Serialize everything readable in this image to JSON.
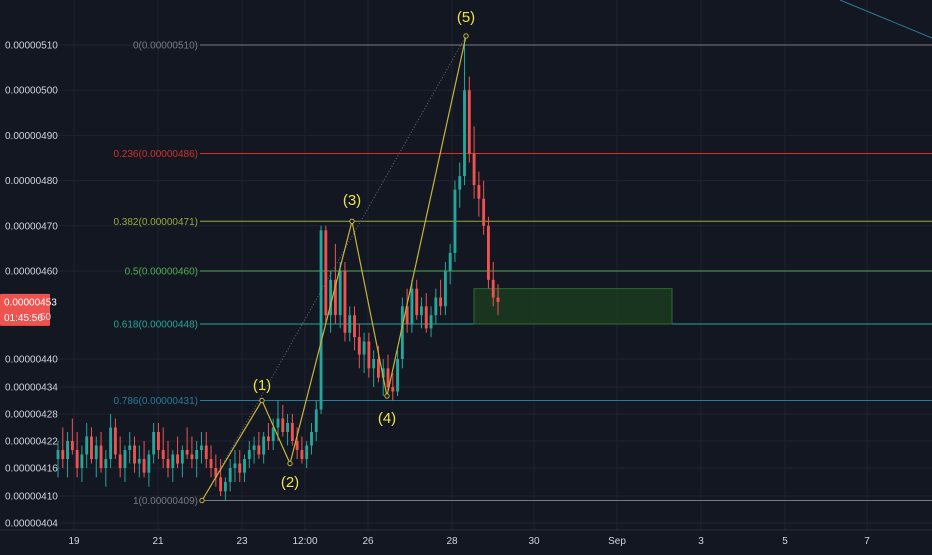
{
  "colors": {
    "background": "#131722",
    "grid": "#1f2330",
    "up": "#26a69a",
    "down": "#ef5350",
    "wave": "#c8b33a",
    "wave_label": "#f2e34a",
    "fib_top": "#787b86",
    "fib_0236": "#d32f2f",
    "fib_0382": "#9aa83a",
    "fib_05": "#4caf50",
    "fib_0618": "#26a69a",
    "fib_0786": "#2b7a9a",
    "fib_1": "#787b86",
    "rect_fill": "#1b3a1e",
    "rect_stroke": "#2e6b32",
    "price_tag_bg": "#ef5350",
    "trendline": "#2b7a9a"
  },
  "chart_data": {
    "type": "candlestick",
    "y_axis": {
      "range": [
        4.02e-06,
        5.15e-06
      ],
      "ticks": [
        {
          "v": 4.04e-06,
          "label": "0.00000404"
        },
        {
          "v": 4.1e-06,
          "label": "0.00000410"
        },
        {
          "v": 4.16e-06,
          "label": "0.00000416"
        },
        {
          "v": 4.22e-06,
          "label": "0.00000422"
        },
        {
          "v": 4.28e-06,
          "label": "0.00000428"
        },
        {
          "v": 4.34e-06,
          "label": "0.00000434"
        },
        {
          "v": 4.4e-06,
          "label": "0.00000440"
        },
        {
          "v": 4.6e-06,
          "label": "0.00000460"
        },
        {
          "v": 4.7e-06,
          "label": "0.00000470"
        },
        {
          "v": 4.8e-06,
          "label": "0.00000480"
        },
        {
          "v": 4.9e-06,
          "label": "0.00000490"
        },
        {
          "v": 5e-06,
          "label": "0.00000500"
        },
        {
          "v": 5.1e-06,
          "label": "0.00000510"
        }
      ]
    },
    "x_axis": {
      "ticks": [
        "19",
        "21",
        "23",
        "12:00",
        "26",
        "28",
        "30",
        "Sep",
        "3",
        "5",
        "7"
      ]
    },
    "current_price": {
      "value": 4.53e-06,
      "label": "0.00000453",
      "countdown": "01:45:56",
      "partial_tick": "50"
    },
    "fib_levels": [
      {
        "ratio": "0",
        "price": 5.1e-06,
        "label": "0(0.00000510)",
        "color_key": "fib_top"
      },
      {
        "ratio": "0.236",
        "price": 4.86e-06,
        "label": "0.236(0.00000486)",
        "color_key": "fib_0236"
      },
      {
        "ratio": "0.382",
        "price": 4.71e-06,
        "label": "0.382(0.00000471)",
        "color_key": "fib_0382"
      },
      {
        "ratio": "0.5",
        "price": 4.6e-06,
        "label": "0.5(0.00000460)",
        "color_key": "fib_05"
      },
      {
        "ratio": "0.618",
        "price": 4.48e-06,
        "label": "0.618(0.00000448)",
        "color_key": "fib_0618"
      },
      {
        "ratio": "0.786",
        "price": 4.31e-06,
        "label": "0.786(0.00000431)",
        "color_key": "fib_0786"
      },
      {
        "ratio": "1",
        "price": 4.09e-06,
        "label": "1(0.00000409)",
        "color_key": "fib_1"
      }
    ],
    "elliott_wave": [
      {
        "label": "",
        "date": "Aug 22",
        "price": 4.09e-06
      },
      {
        "label": "(1)",
        "date": "Aug 23",
        "price": 4.31e-06
      },
      {
        "label": "(2)",
        "date": "Aug 24",
        "price": 4.17e-06
      },
      {
        "label": "(3)",
        "date": "Aug 25",
        "price": 4.71e-06
      },
      {
        "label": "(4)",
        "date": "Aug 26",
        "price": 4.32e-06
      },
      {
        "label": "(5)",
        "date": "Aug 28",
        "price": 5.12e-06
      }
    ],
    "support_zone": {
      "price_top": 4.56e-06,
      "price_bottom": 4.48e-06
    },
    "candles": [
      [
        4.18e-06,
        4.22e-06,
        4.14e-06,
        4.2e-06
      ],
      [
        4.2e-06,
        4.25e-06,
        4.16e-06,
        4.18e-06
      ],
      [
        4.18e-06,
        4.24e-06,
        4.14e-06,
        4.22e-06
      ],
      [
        4.22e-06,
        4.27e-06,
        4.19e-06,
        4.2e-06
      ],
      [
        4.2e-06,
        4.24e-06,
        4.14e-06,
        4.16e-06
      ],
      [
        4.16e-06,
        4.21e-06,
        4.13e-06,
        4.19e-06
      ],
      [
        4.19e-06,
        4.26e-06,
        4.16e-06,
        4.23e-06
      ],
      [
        4.23e-06,
        4.25e-06,
        4.17e-06,
        4.18e-06
      ],
      [
        4.18e-06,
        4.23e-06,
        4.14e-06,
        4.21e-06
      ],
      [
        4.21e-06,
        4.24e-06,
        4.15e-06,
        4.16e-06
      ],
      [
        4.16e-06,
        4.2e-06,
        4.12e-06,
        4.18e-06
      ],
      [
        4.18e-06,
        4.28e-06,
        4.16e-06,
        4.25e-06
      ],
      [
        4.25e-06,
        4.27e-06,
        4.18e-06,
        4.19e-06
      ],
      [
        4.19e-06,
        4.23e-06,
        4.14e-06,
        4.16e-06
      ],
      [
        4.16e-06,
        4.21e-06,
        4.13e-06,
        4.2e-06
      ],
      [
        4.2e-06,
        4.24e-06,
        4.17e-06,
        4.21e-06
      ],
      [
        4.21e-06,
        4.23e-06,
        4.15e-06,
        4.17e-06
      ],
      [
        4.17e-06,
        4.21e-06,
        4.14e-06,
        4.18e-06
      ],
      [
        4.18e-06,
        4.22e-06,
        4.14e-06,
        4.15e-06
      ],
      [
        4.15e-06,
        4.2e-06,
        4.12e-06,
        4.19e-06
      ],
      [
        4.19e-06,
        4.26e-06,
        4.17e-06,
        4.24e-06
      ],
      [
        4.24e-06,
        4.26e-06,
        4.18e-06,
        4.2e-06
      ],
      [
        4.2e-06,
        4.25e-06,
        4.16e-06,
        4.18e-06
      ],
      [
        4.18e-06,
        4.22e-06,
        4.14e-06,
        4.16e-06
      ],
      [
        4.16e-06,
        4.2e-06,
        4.13e-06,
        4.19e-06
      ],
      [
        4.19e-06,
        4.23e-06,
        4.16e-06,
        4.17e-06
      ],
      [
        4.17e-06,
        4.21e-06,
        4.14e-06,
        4.2e-06
      ],
      [
        4.2e-06,
        4.25e-06,
        4.18e-06,
        4.19e-06
      ],
      [
        4.19e-06,
        4.23e-06,
        4.16e-06,
        4.18e-06
      ],
      [
        4.18e-06,
        4.22e-06,
        4.14e-06,
        4.2e-06
      ],
      [
        4.2e-06,
        4.24e-06,
        4.17e-06,
        4.21e-06
      ],
      [
        4.21e-06,
        4.24e-06,
        4.16e-06,
        4.18e-06
      ],
      [
        4.18e-06,
        4.21e-06,
        4.14e-06,
        4.16e-06
      ],
      [
        4.16e-06,
        4.19e-06,
        4.12e-06,
        4.14e-06
      ],
      [
        4.14e-06,
        4.18e-06,
        4.1e-06,
        4.11e-06
      ],
      [
        4.11e-06,
        4.14e-06,
        4.09e-06,
        4.13e-06
      ],
      [
        4.13e-06,
        4.18e-06,
        4.11e-06,
        4.16e-06
      ],
      [
        4.16e-06,
        4.2e-06,
        4.13e-06,
        4.17e-06
      ],
      [
        4.17e-06,
        4.2e-06,
        4.13e-06,
        4.15e-06
      ],
      [
        4.15e-06,
        4.19e-06,
        4.13e-06,
        4.18e-06
      ],
      [
        4.18e-06,
        4.22e-06,
        4.16e-06,
        4.2e-06
      ],
      [
        4.2e-06,
        4.23e-06,
        4.17e-06,
        4.21e-06
      ],
      [
        4.21e-06,
        4.24e-06,
        4.18e-06,
        4.19e-06
      ],
      [
        4.19e-06,
        4.24e-06,
        4.17e-06,
        4.23e-06
      ],
      [
        4.23e-06,
        4.26e-06,
        4.2e-06,
        4.22e-06
      ],
      [
        4.22e-06,
        4.27e-06,
        4.2e-06,
        4.25e-06
      ],
      [
        4.25e-06,
        4.31e-06,
        4.22e-06,
        4.27e-06
      ],
      [
        4.27e-06,
        4.3e-06,
        4.23e-06,
        4.24e-06
      ],
      [
        4.24e-06,
        4.28e-06,
        4.21e-06,
        4.26e-06
      ],
      [
        4.26e-06,
        4.28e-06,
        4.21e-06,
        4.22e-06
      ],
      [
        4.22e-06,
        4.25e-06,
        4.18e-06,
        4.2e-06
      ],
      [
        4.2e-06,
        4.23e-06,
        4.17e-06,
        4.18e-06
      ],
      [
        4.18e-06,
        4.22e-06,
        4.16e-06,
        4.21e-06
      ],
      [
        4.21e-06,
        4.26e-06,
        4.19e-06,
        4.24e-06
      ],
      [
        4.24e-06,
        4.31e-06,
        4.22e-06,
        4.29e-06
      ],
      [
        4.29e-06,
        4.7e-06,
        4.28e-06,
        4.69e-06
      ],
      [
        4.69e-06,
        4.7e-06,
        4.48e-06,
        4.5e-06
      ],
      [
        4.5e-06,
        4.6e-06,
        4.46e-06,
        4.58e-06
      ],
      [
        4.58e-06,
        4.66e-06,
        4.48e-06,
        4.5e-06
      ],
      [
        4.5e-06,
        4.62e-06,
        4.47e-06,
        4.6e-06
      ],
      [
        4.6e-06,
        4.62e-06,
        4.44e-06,
        4.46e-06
      ],
      [
        4.46e-06,
        4.52e-06,
        4.44e-06,
        4.5e-06
      ],
      [
        4.5e-06,
        4.52e-06,
        4.42e-06,
        4.45e-06
      ],
      [
        4.45e-06,
        4.48e-06,
        4.38e-06,
        4.41e-06
      ],
      [
        4.41e-06,
        4.46e-06,
        4.37e-06,
        4.44e-06
      ],
      [
        4.44e-06,
        4.46e-06,
        4.36e-06,
        4.38e-06
      ],
      [
        4.38e-06,
        4.42e-06,
        4.34e-06,
        4.4e-06
      ],
      [
        4.4e-06,
        4.43e-06,
        4.35e-06,
        4.36e-06
      ],
      [
        4.36e-06,
        4.4e-06,
        4.32e-06,
        4.38e-06
      ],
      [
        4.38e-06,
        4.41e-06,
        4.33e-06,
        4.34e-06
      ],
      [
        4.34e-06,
        4.37e-06,
        4.31e-06,
        4.33e-06
      ],
      [
        4.33e-06,
        4.42e-06,
        4.32e-06,
        4.4e-06
      ],
      [
        4.4e-06,
        4.54e-06,
        4.38e-06,
        4.52e-06
      ],
      [
        4.52e-06,
        4.56e-06,
        4.46e-06,
        4.48e-06
      ],
      [
        4.48e-06,
        4.58e-06,
        4.46e-06,
        4.56e-06
      ],
      [
        4.56e-06,
        4.58e-06,
        4.49e-06,
        4.5e-06
      ],
      [
        4.5e-06,
        4.54e-06,
        4.47e-06,
        4.52e-06
      ],
      [
        4.52e-06,
        4.55e-06,
        4.46e-06,
        4.47e-06
      ],
      [
        4.47e-06,
        4.52e-06,
        4.45e-06,
        4.5e-06
      ],
      [
        4.5e-06,
        4.56e-06,
        4.48e-06,
        4.54e-06
      ],
      [
        4.54e-06,
        4.58e-06,
        4.5e-06,
        4.52e-06
      ],
      [
        4.52e-06,
        4.62e-06,
        4.5e-06,
        4.6e-06
      ],
      [
        4.6e-06,
        4.66e-06,
        4.57e-06,
        4.64e-06
      ],
      [
        4.64e-06,
        4.8e-06,
        4.62e-06,
        4.78e-06
      ],
      [
        4.78e-06,
        4.84e-06,
        4.74e-06,
        4.81e-06
      ],
      [
        4.81e-06,
        5.12e-06,
        4.79e-06,
        5e-06
      ],
      [
        5e-06,
        5.03e-06,
        4.84e-06,
        4.86e-06
      ],
      [
        4.86e-06,
        4.92e-06,
        4.76e-06,
        4.79e-06
      ],
      [
        4.79e-06,
        4.82e-06,
        4.72e-06,
        4.76e-06
      ],
      [
        4.76e-06,
        4.8e-06,
        4.68e-06,
        4.7e-06
      ],
      [
        4.7e-06,
        4.72e-06,
        4.56e-06,
        4.58e-06
      ],
      [
        4.58e-06,
        4.62e-06,
        4.52e-06,
        4.54e-06
      ],
      [
        4.54e-06,
        4.57e-06,
        4.5e-06,
        4.53e-06
      ]
    ]
  }
}
